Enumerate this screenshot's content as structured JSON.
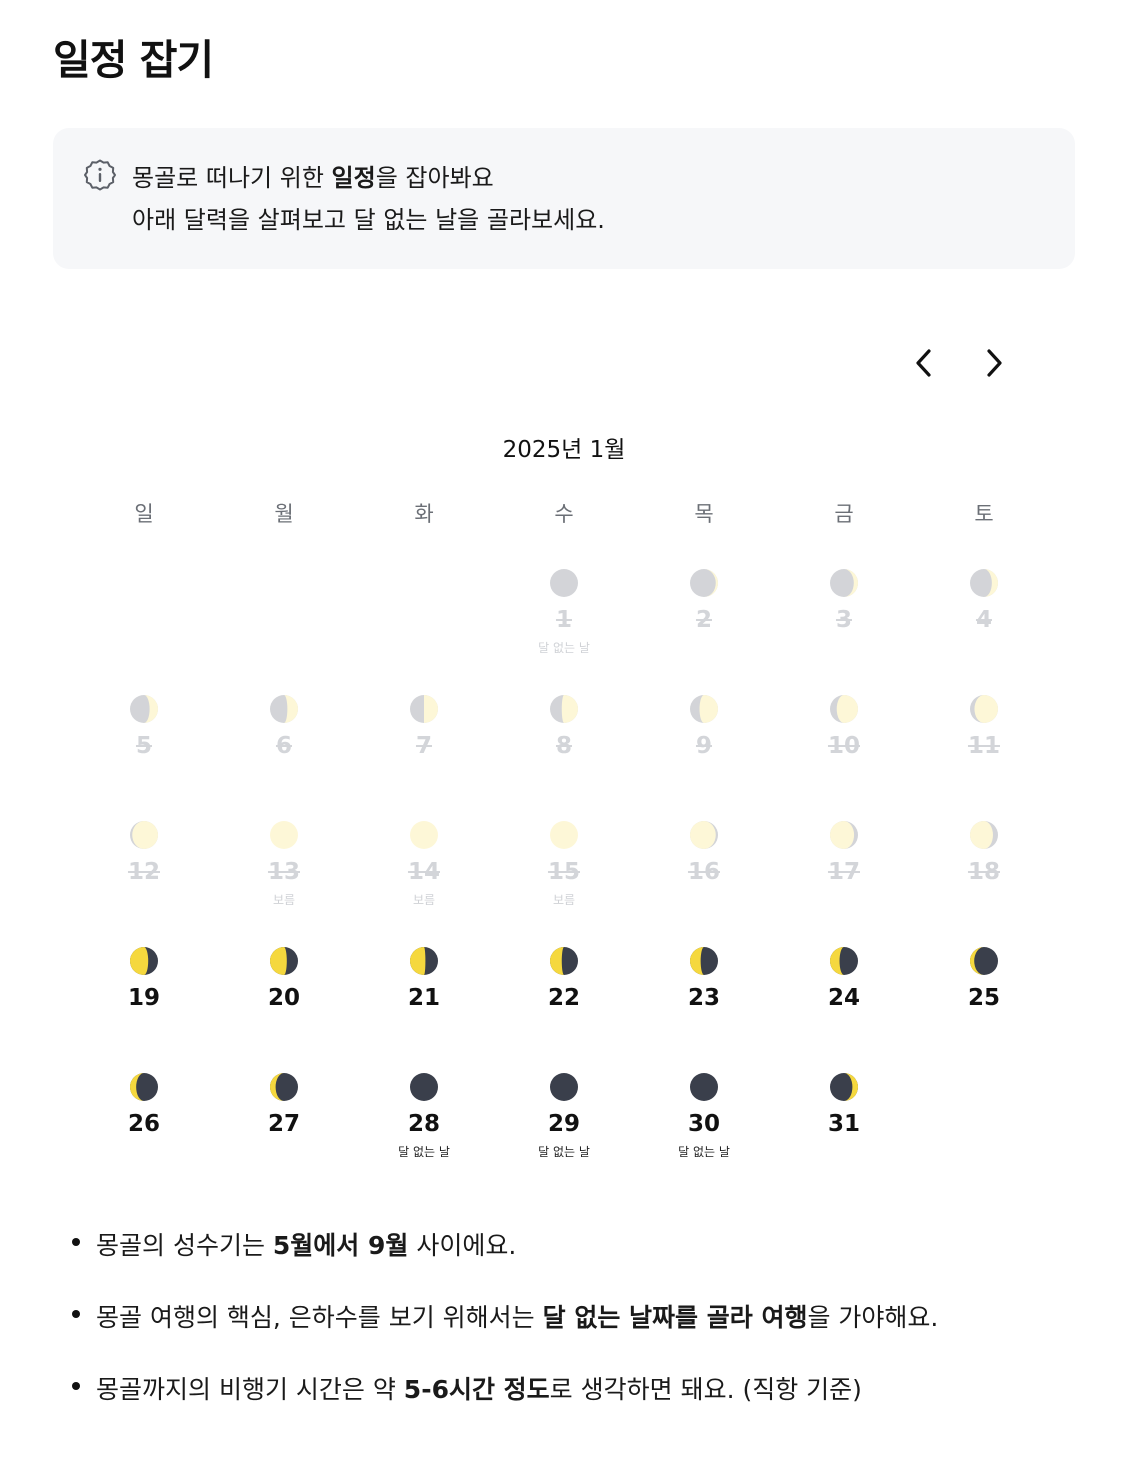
{
  "page": {
    "title": "일정 잡기"
  },
  "info": {
    "icon": "info-icon",
    "line1": [
      {
        "text": "몽골로 떠나기 위한 ",
        "bold": false
      },
      {
        "text": "일정",
        "bold": true
      },
      {
        "text": "을 잡아봐요",
        "bold": false
      }
    ],
    "line2": "아래 달력을 살펴보고 달 없는 날을 골라보세요."
  },
  "nav": {
    "prev_icon": "chevron-left-icon",
    "next_icon": "chevron-right-icon"
  },
  "calendar": {
    "month_label": "2025년 1월",
    "weekdays": [
      "일",
      "월",
      "화",
      "수",
      "목",
      "금",
      "토"
    ],
    "first_weekday": 3,
    "colors": {
      "lit": "#fbeea8",
      "dark_side": "#9ea2a9",
      "dim_lit": "#fbeea8",
      "active_lit": "#f5d83e",
      "active_dark": "#3a3f4b"
    },
    "days": [
      {
        "d": 1,
        "illum": 0.0,
        "note": "달 없는 날",
        "past": true
      },
      {
        "d": 2,
        "illum": 0.08,
        "note": "",
        "past": true
      },
      {
        "d": 3,
        "illum": 0.15,
        "note": "",
        "past": true
      },
      {
        "d": 4,
        "illum": 0.22,
        "note": "",
        "past": true
      },
      {
        "d": 5,
        "illum": 0.3,
        "note": "",
        "past": true
      },
      {
        "d": 6,
        "illum": 0.38,
        "note": "",
        "past": true
      },
      {
        "d": 7,
        "illum": 0.5,
        "note": "",
        "past": true
      },
      {
        "d": 8,
        "illum": 0.58,
        "note": "",
        "past": true
      },
      {
        "d": 9,
        "illum": 0.66,
        "note": "",
        "past": true
      },
      {
        "d": 10,
        "illum": 0.76,
        "note": "",
        "past": true
      },
      {
        "d": 11,
        "illum": 0.84,
        "note": "",
        "past": true
      },
      {
        "d": 12,
        "illum": 0.92,
        "note": "",
        "past": true
      },
      {
        "d": 13,
        "illum": 1.0,
        "note": "보름",
        "past": true
      },
      {
        "d": 14,
        "illum": 1.0,
        "note": "보름",
        "past": true
      },
      {
        "d": 15,
        "illum": 1.0,
        "note": "보름",
        "past": true
      },
      {
        "d": 16,
        "illum": -0.92,
        "note": "",
        "past": true
      },
      {
        "d": 17,
        "illum": -0.86,
        "note": "",
        "past": true
      },
      {
        "d": 18,
        "illum": -0.82,
        "note": "",
        "past": true
      },
      {
        "d": 19,
        "illum": -0.65,
        "note": "",
        "past": false
      },
      {
        "d": 20,
        "illum": -0.6,
        "note": "",
        "past": false
      },
      {
        "d": 21,
        "illum": -0.55,
        "note": "",
        "past": false
      },
      {
        "d": 22,
        "illum": -0.42,
        "note": "",
        "past": false
      },
      {
        "d": 23,
        "illum": -0.38,
        "note": "",
        "past": false
      },
      {
        "d": 24,
        "illum": -0.34,
        "note": "",
        "past": false
      },
      {
        "d": 25,
        "illum": -0.15,
        "note": "",
        "past": false
      },
      {
        "d": 26,
        "illum": -0.22,
        "note": "",
        "past": false
      },
      {
        "d": 27,
        "illum": -0.2,
        "note": "",
        "past": false
      },
      {
        "d": 28,
        "illum": 0.0,
        "note": "달 없는 날",
        "past": false
      },
      {
        "d": 29,
        "illum": 0.0,
        "note": "달 없는 날",
        "past": false
      },
      {
        "d": 30,
        "illum": 0.0,
        "note": "달 없는 날",
        "past": false
      },
      {
        "d": 31,
        "illum": 0.2,
        "note": "",
        "past": false
      }
    ]
  },
  "tips": [
    [
      {
        "text": "몽골의 성수기는 ",
        "bold": false
      },
      {
        "text": "5월에서 9월",
        "bold": true
      },
      {
        "text": " 사이에요.",
        "bold": false
      }
    ],
    [
      {
        "text": "몽골 여행의 핵심, 은하수를 보기 위해서는 ",
        "bold": false
      },
      {
        "text": "달 없는 날짜를 골라 여행",
        "bold": true
      },
      {
        "text": "을 가야해요.",
        "bold": false
      }
    ],
    [
      {
        "text": "몽골까지의 비행기 시간은 약 ",
        "bold": false
      },
      {
        "text": "5-6시간 정도",
        "bold": true
      },
      {
        "text": "로 생각하면 돼요. (직항 기준)",
        "bold": false
      }
    ]
  ]
}
